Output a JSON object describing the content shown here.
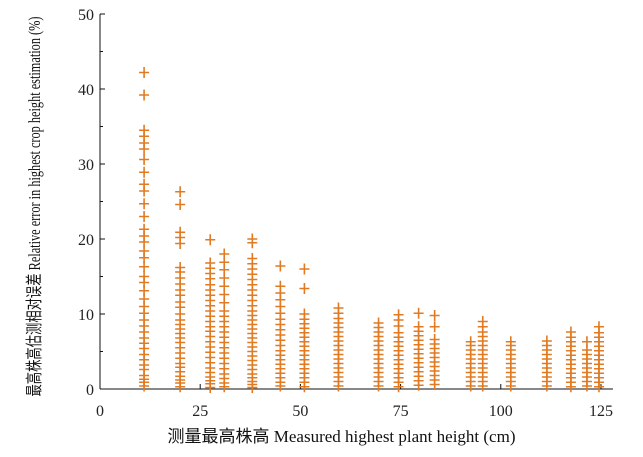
{
  "chart_data": {
    "type": "scatter",
    "marker": "plus",
    "color": "#E07B24",
    "title": "",
    "xlabel": "测量最高株高 Measured highest plant height (cm)",
    "ylabel": "最高株高估测相对误差 Relative error in highest crop height estimation (%)",
    "xlim": [
      0,
      128
    ],
    "ylim": [
      0,
      50
    ],
    "xticks": [
      0,
      25,
      50,
      75,
      100,
      125
    ],
    "yticks": [
      0,
      10,
      20,
      30,
      40,
      50
    ],
    "grid": false,
    "columns": [
      {
        "x": 11,
        "values": [
          0.4,
          0.9,
          1.3,
          1.8,
          2.6,
          3.2,
          3.9,
          4.6,
          5.4,
          6.1,
          6.8,
          7.6,
          8.4,
          9.2,
          10.1,
          11.0,
          12.0,
          13.1,
          14.2,
          15.0,
          16.3,
          17.5,
          18.4,
          19.6,
          20.4,
          21.3,
          23.0,
          24.7,
          26.4,
          27.3,
          28.9,
          30.6,
          32.0,
          32.8,
          33.7,
          34.5,
          39.2,
          42.2
        ]
      },
      {
        "x": 20,
        "values": [
          0.3,
          0.8,
          1.2,
          1.7,
          2.3,
          2.9,
          3.4,
          4.1,
          4.8,
          5.5,
          6.2,
          6.8,
          7.4,
          8.0,
          8.6,
          9.2,
          10.0,
          10.9,
          11.6,
          12.5,
          13.2,
          14.0,
          14.8,
          15.6,
          16.2,
          19.4,
          20.2,
          20.9,
          24.6,
          26.3
        ]
      },
      {
        "x": 27.5,
        "values": [
          0.2,
          0.7,
          1.1,
          1.6,
          2.2,
          2.8,
          3.5,
          4.2,
          4.9,
          5.6,
          6.3,
          7.0,
          7.7,
          8.3,
          9.0,
          9.7,
          10.4,
          11.1,
          11.8,
          12.5,
          13.2,
          13.9,
          14.7,
          15.4,
          16.1,
          16.8,
          19.9
        ]
      },
      {
        "x": 31,
        "values": [
          0.3,
          0.8,
          1.4,
          2.0,
          2.7,
          3.4,
          4.1,
          4.8,
          5.5,
          6.2,
          6.9,
          7.6,
          8.3,
          9.0,
          9.7,
          10.4,
          11.5,
          12.6,
          13.7,
          14.8,
          15.9,
          16.9,
          18.0
        ]
      },
      {
        "x": 38,
        "values": [
          0.2,
          0.6,
          1.0,
          1.5,
          2.0,
          2.6,
          3.2,
          3.8,
          4.4,
          5.0,
          5.6,
          6.2,
          6.8,
          7.4,
          8.0,
          8.6,
          9.2,
          9.8,
          10.4,
          11.1,
          11.8,
          12.5,
          13.2,
          13.9,
          14.6,
          15.3,
          16.0,
          16.7,
          17.4,
          19.5,
          20.0
        ]
      },
      {
        "x": 45,
        "values": [
          0.4,
          0.9,
          1.5,
          2.1,
          2.7,
          3.3,
          3.9,
          4.5,
          5.1,
          5.8,
          6.5,
          7.2,
          7.9,
          8.6,
          9.3,
          10.1,
          11.0,
          11.9,
          12.8,
          13.7,
          16.4
        ]
      },
      {
        "x": 51,
        "values": [
          0.3,
          0.9,
          1.5,
          2.1,
          2.7,
          3.3,
          3.9,
          4.5,
          5.1,
          5.7,
          6.3,
          6.9,
          7.5,
          8.1,
          8.7,
          9.3,
          10.0,
          13.4,
          16.0
        ]
      },
      {
        "x": 59.5,
        "values": [
          0.4,
          1.0,
          1.6,
          2.2,
          2.8,
          3.4,
          4.0,
          4.6,
          5.2,
          5.8,
          6.4,
          7.0,
          7.6,
          8.2,
          8.8,
          9.4,
          10.1,
          10.8
        ]
      },
      {
        "x": 69.5,
        "values": [
          0.4,
          1.0,
          1.6,
          2.2,
          2.8,
          3.4,
          4.0,
          4.6,
          5.2,
          5.8,
          6.4,
          7.0,
          7.6,
          8.2,
          8.8
        ]
      },
      {
        "x": 74.5,
        "values": [
          0.3,
          0.9,
          1.5,
          2.1,
          2.7,
          3.3,
          3.9,
          4.5,
          5.1,
          5.7,
          6.3,
          6.9,
          7.5,
          8.4,
          9.2,
          9.9
        ]
      },
      {
        "x": 79.5,
        "values": [
          0.5,
          1.1,
          1.7,
          2.3,
          2.9,
          3.5,
          4.1,
          4.7,
          5.3,
          5.9,
          6.5,
          7.1,
          7.7,
          8.3,
          10.1
        ]
      },
      {
        "x": 83.5,
        "values": [
          0.6,
          1.2,
          1.8,
          2.4,
          3.0,
          3.6,
          4.2,
          4.8,
          5.4,
          6.0,
          6.6,
          8.3,
          9.8
        ]
      },
      {
        "x": 92.5,
        "values": [
          0.4,
          1.0,
          1.6,
          2.2,
          2.8,
          3.4,
          4.0,
          4.6,
          5.2,
          5.8,
          6.3
        ]
      },
      {
        "x": 95.5,
        "values": [
          0.4,
          1.0,
          1.6,
          2.2,
          2.8,
          3.4,
          4.0,
          4.6,
          5.2,
          5.8,
          6.4,
          7.0,
          7.6,
          8.3,
          9.0
        ]
      },
      {
        "x": 102.5,
        "values": [
          0.4,
          1.0,
          1.6,
          2.2,
          2.8,
          3.4,
          4.0,
          4.6,
          5.2,
          5.8,
          6.3
        ]
      },
      {
        "x": 111.5,
        "values": [
          0.4,
          1.0,
          1.6,
          2.2,
          2.8,
          3.4,
          4.0,
          4.6,
          5.2,
          5.8,
          6.4
        ]
      },
      {
        "x": 117.5,
        "values": [
          0.3,
          0.9,
          1.5,
          2.1,
          2.7,
          3.3,
          3.9,
          4.5,
          5.1,
          5.7,
          6.3,
          6.9,
          7.6
        ]
      },
      {
        "x": 121.5,
        "values": [
          0.4,
          1.0,
          1.6,
          2.2,
          2.8,
          3.4,
          4.0,
          4.6,
          5.2,
          6.3
        ]
      },
      {
        "x": 124.5,
        "values": [
          0.3,
          0.9,
          1.5,
          2.1,
          2.7,
          3.3,
          3.9,
          4.5,
          5.1,
          5.7,
          6.3,
          6.9,
          7.5,
          8.3
        ]
      }
    ]
  }
}
